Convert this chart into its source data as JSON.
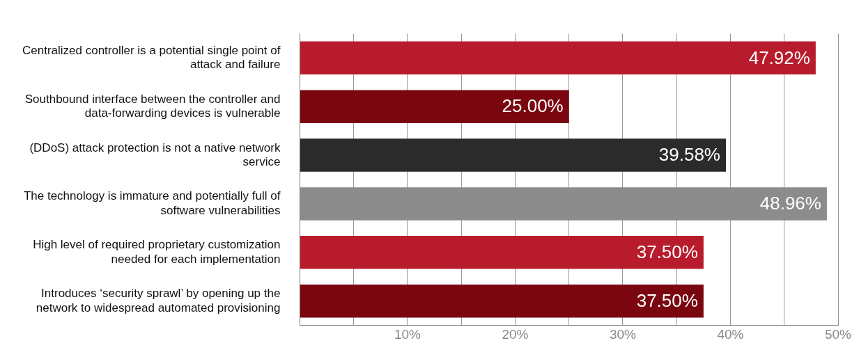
{
  "chart_data": {
    "type": "bar",
    "orientation": "horizontal",
    "categories": [
      "Centralized controller is a potential single point of attack and failure",
      "Southbound interface between the controller and data-forwarding devices is vulnerable",
      "(DDoS) attack protection is not a native network service",
      "The technology is immature and potentially full of software vulnerabilities",
      "High level of required proprietary customization needed for each implementation",
      "Introduces ‘security sprawl’ by opening up the network to widespread automated provisioning"
    ],
    "values": [
      47.92,
      25.0,
      39.58,
      48.96,
      37.5,
      37.5
    ],
    "colors": [
      "#b81c2c",
      "#7a0710",
      "#2b2b2b",
      "#8c8c8c",
      "#b81c2c",
      "#7a0710"
    ],
    "value_labels": [
      "47.92%",
      "25.00%",
      "39.58%",
      "48.96%",
      "37.50%",
      "37.50%"
    ],
    "xlim": [
      0,
      50
    ],
    "xticks": [
      {
        "value": 0,
        "label": null
      },
      {
        "value": 5,
        "label": null
      },
      {
        "value": 10,
        "label": "10%"
      },
      {
        "value": 15,
        "label": null
      },
      {
        "value": 20,
        "label": "20%"
      },
      {
        "value": 25,
        "label": null
      },
      {
        "value": 30,
        "label": "30%"
      },
      {
        "value": 35,
        "label": null
      },
      {
        "value": 40,
        "label": "40%"
      },
      {
        "value": 45,
        "label": null
      },
      {
        "value": 50,
        "label": "50%"
      }
    ],
    "grid": "x"
  }
}
